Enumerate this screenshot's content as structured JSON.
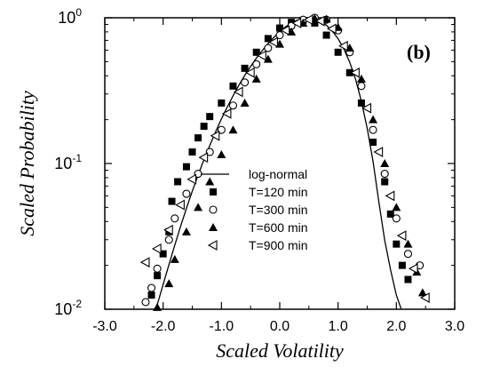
{
  "chart_data": {
    "type": "scatter",
    "title": "",
    "panel_label": "(b)",
    "xlabel": "Scaled Volatility",
    "ylabel": "Scaled Probability",
    "xlim": [
      -3.0,
      3.0
    ],
    "ylim": [
      0.01,
      1.0
    ],
    "yscale": "log",
    "grid": false,
    "legend_position": "center-left",
    "x_ticks": [
      {
        "value": -3.0,
        "label": "-3.0"
      },
      {
        "value": -2.0,
        "label": "-2.0"
      },
      {
        "value": -1.0,
        "label": "-1.0"
      },
      {
        "value": 0.0,
        "label": "0.0"
      },
      {
        "value": 1.0,
        "label": "1.0"
      },
      {
        "value": 2.0,
        "label": "2.0"
      },
      {
        "value": 3.0,
        "label": "3.0"
      }
    ],
    "y_ticks": [
      {
        "value": 1.0,
        "base": "10",
        "exp": "0"
      },
      {
        "value": 0.1,
        "base": "10",
        "exp": "-1"
      },
      {
        "value": 0.01,
        "base": "10",
        "exp": "-2"
      }
    ],
    "curve": {
      "name": "log-normal",
      "x": [
        -2.12,
        -2.0,
        -1.9,
        -1.8,
        -1.7,
        -1.6,
        -1.5,
        -1.4,
        -1.3,
        -1.2,
        -1.1,
        -1.0,
        -0.9,
        -0.8,
        -0.7,
        -0.6,
        -0.5,
        -0.4,
        -0.3,
        -0.2,
        -0.1,
        0.0,
        0.1,
        0.2,
        0.3,
        0.4,
        0.5,
        0.6,
        0.7,
        0.8,
        0.9,
        1.0,
        1.1,
        1.2,
        1.3,
        1.4,
        1.5,
        1.6,
        1.7,
        1.8,
        1.9,
        2.0,
        2.08
      ],
      "y": [
        0.0101,
        0.0148,
        0.0202,
        0.0275,
        0.0371,
        0.0492,
        0.0645,
        0.0833,
        0.106,
        0.133,
        0.165,
        0.202,
        0.244,
        0.292,
        0.345,
        0.402,
        0.464,
        0.529,
        0.596,
        0.665,
        0.734,
        0.802,
        0.866,
        0.921,
        0.963,
        0.989,
        0.997,
        0.982,
        0.946,
        0.889,
        0.812,
        0.718,
        0.611,
        0.495,
        0.378,
        0.268,
        0.174,
        0.103,
        0.0545,
        0.0297,
        0.0186,
        0.0125,
        0.0101
      ]
    },
    "series": [
      {
        "name": "T=120 min",
        "marker": "square",
        "points": [
          [
            -2.2,
            0.0125
          ],
          [
            -2.1,
            0.017
          ],
          [
            -2.0,
            0.024
          ],
          [
            -1.9,
            0.034
          ],
          [
            -1.85,
            0.055
          ],
          [
            -1.75,
            0.075
          ],
          [
            -1.6,
            0.095
          ],
          [
            -1.5,
            0.12
          ],
          [
            -1.4,
            0.15
          ],
          [
            -1.3,
            0.18
          ],
          [
            -1.2,
            0.21
          ],
          [
            -1.0,
            0.26
          ],
          [
            -0.8,
            0.34
          ],
          [
            -0.6,
            0.45
          ],
          [
            -0.4,
            0.58
          ],
          [
            -0.2,
            0.72
          ],
          [
            0.0,
            0.85
          ],
          [
            0.2,
            0.93
          ],
          [
            0.4,
            0.96
          ],
          [
            0.6,
            0.92
          ],
          [
            0.8,
            0.76
          ],
          [
            1.0,
            0.58
          ],
          [
            1.2,
            0.42
          ],
          [
            1.4,
            0.26
          ],
          [
            1.6,
            0.14
          ],
          [
            1.8,
            0.075
          ],
          [
            1.9,
            0.045
          ],
          [
            2.0,
            0.028
          ],
          [
            2.1,
            0.02
          ],
          [
            2.2,
            0.016
          ]
        ]
      },
      {
        "name": "T=300 min",
        "marker": "circle",
        "points": [
          [
            -2.3,
            0.0112
          ],
          [
            -2.2,
            0.014
          ],
          [
            -2.1,
            0.019
          ],
          [
            -1.9,
            0.03
          ],
          [
            -1.8,
            0.042
          ],
          [
            -1.6,
            0.062
          ],
          [
            -1.4,
            0.085
          ],
          [
            -1.2,
            0.12
          ],
          [
            -1.0,
            0.17
          ],
          [
            -0.8,
            0.25
          ],
          [
            -0.6,
            0.36
          ],
          [
            -0.4,
            0.48
          ],
          [
            -0.2,
            0.62
          ],
          [
            0.0,
            0.76
          ],
          [
            0.2,
            0.88
          ],
          [
            0.4,
            0.97
          ],
          [
            0.6,
            1.0
          ],
          [
            0.8,
            0.97
          ],
          [
            1.0,
            0.82
          ],
          [
            1.2,
            0.58
          ],
          [
            1.4,
            0.34
          ],
          [
            1.6,
            0.17
          ],
          [
            1.8,
            0.085
          ],
          [
            2.0,
            0.042
          ],
          [
            2.2,
            0.024
          ],
          [
            2.4,
            0.02
          ]
        ]
      },
      {
        "name": "T=600 min",
        "marker": "triangle",
        "points": [
          [
            -2.1,
            0.0103
          ],
          [
            -1.9,
            0.015
          ],
          [
            -1.8,
            0.022
          ],
          [
            -1.6,
            0.034
          ],
          [
            -1.4,
            0.05
          ],
          [
            -1.2,
            0.075
          ],
          [
            -1.0,
            0.115
          ],
          [
            -0.8,
            0.17
          ],
          [
            -0.6,
            0.26
          ],
          [
            -0.4,
            0.38
          ],
          [
            -0.2,
            0.52
          ],
          [
            0.0,
            0.66
          ],
          [
            0.2,
            0.8
          ],
          [
            0.4,
            0.92
          ],
          [
            0.6,
            0.99
          ],
          [
            0.8,
            0.98
          ],
          [
            1.0,
            0.86
          ],
          [
            1.2,
            0.62
          ],
          [
            1.4,
            0.38
          ],
          [
            1.6,
            0.2
          ],
          [
            1.8,
            0.1
          ],
          [
            2.0,
            0.05
          ],
          [
            2.2,
            0.028
          ],
          [
            2.35,
            0.018
          ],
          [
            2.45,
            0.013
          ]
        ]
      },
      {
        "name": "T=900 min",
        "marker": "triangle-left",
        "points": [
          [
            -2.3,
            0.021
          ],
          [
            -2.1,
            0.026
          ],
          [
            -1.9,
            0.035
          ],
          [
            -1.7,
            0.052
          ],
          [
            -1.5,
            0.078
          ],
          [
            -1.3,
            0.11
          ],
          [
            -1.1,
            0.155
          ],
          [
            -0.9,
            0.22
          ],
          [
            -0.7,
            0.31
          ],
          [
            -0.5,
            0.42
          ],
          [
            -0.3,
            0.55
          ],
          [
            -0.1,
            0.68
          ],
          [
            0.1,
            0.82
          ],
          [
            0.3,
            0.92
          ],
          [
            0.5,
            0.97
          ],
          [
            0.7,
            0.95
          ],
          [
            0.9,
            0.84
          ],
          [
            1.1,
            0.64
          ],
          [
            1.3,
            0.42
          ],
          [
            1.5,
            0.24
          ],
          [
            1.7,
            0.12
          ],
          [
            1.9,
            0.06
          ],
          [
            2.1,
            0.032
          ],
          [
            2.3,
            0.019
          ],
          [
            2.5,
            0.012
          ]
        ]
      }
    ]
  }
}
